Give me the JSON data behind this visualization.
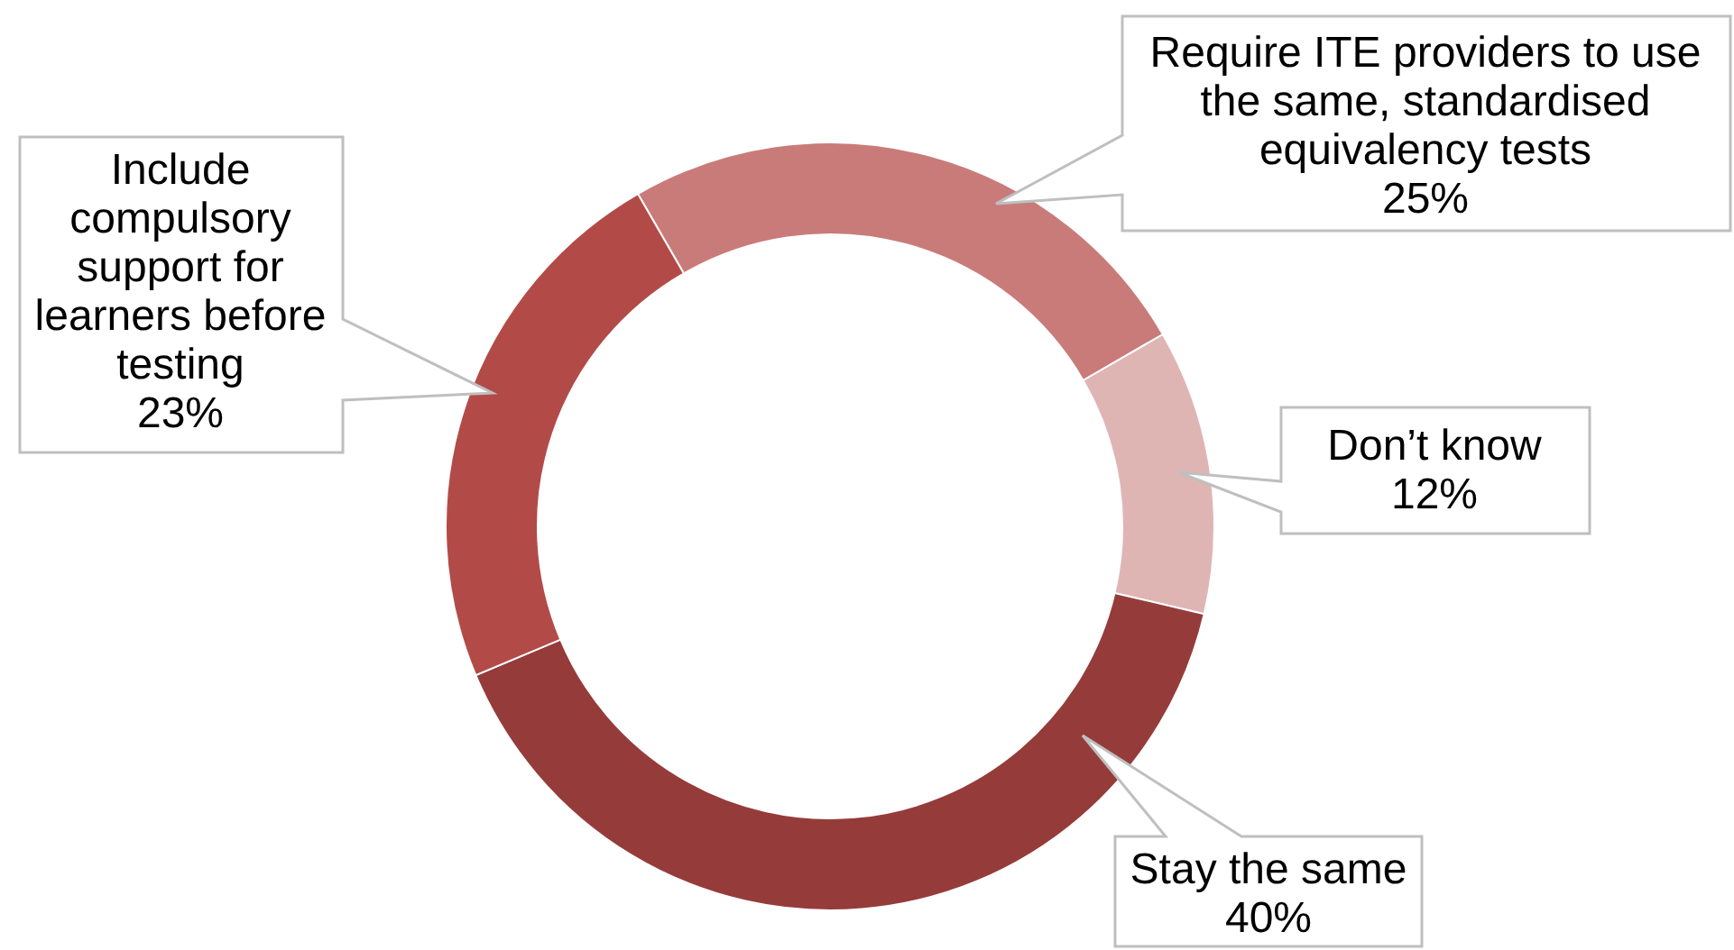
{
  "chart_data": {
    "type": "donut",
    "categories": [
      "Require ITE providers to use the same, standardised equivalency tests",
      "Don’t know",
      "Stay the same",
      "Include compulsory support for learners before testing"
    ],
    "values": [
      25,
      12,
      40,
      23
    ],
    "colors": [
      "#c97b7a",
      "#dfb5b4",
      "#953c3b",
      "#b24b48"
    ],
    "value_labels": [
      "25%",
      "12%",
      "40%",
      "23%"
    ]
  }
}
